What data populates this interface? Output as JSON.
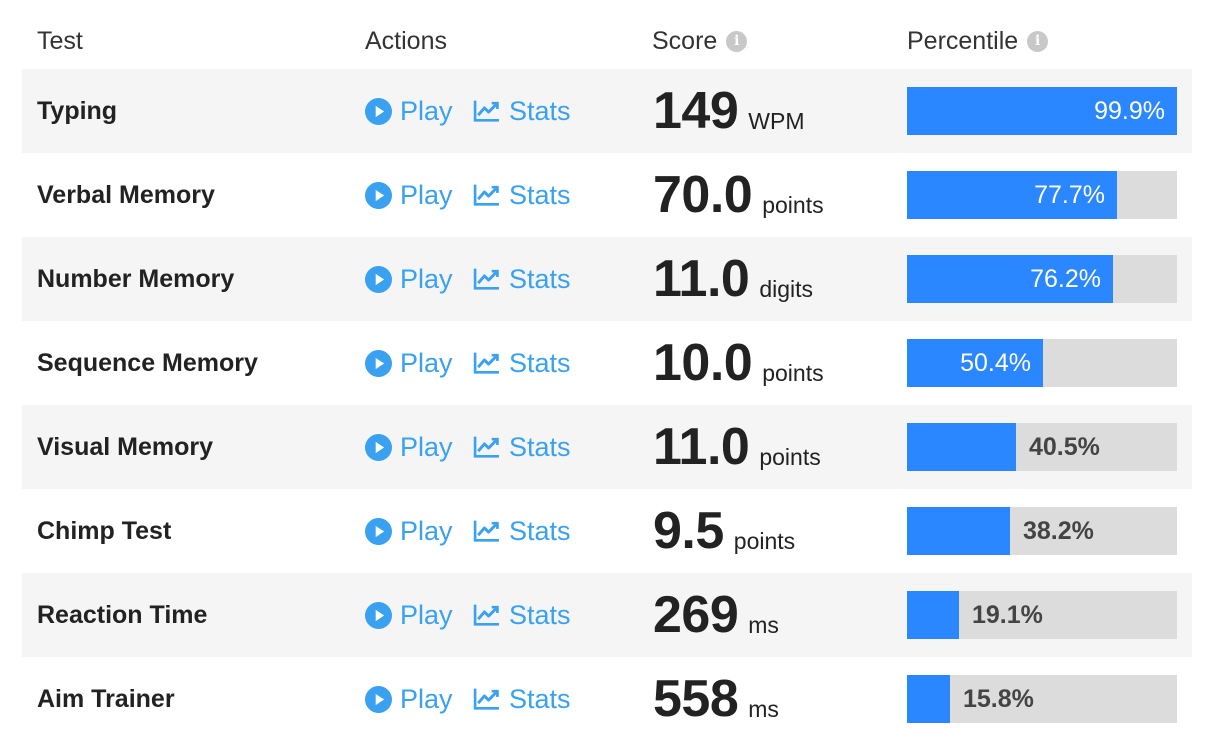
{
  "headers": {
    "test": "Test",
    "actions": "Actions",
    "score": "Score",
    "percentile": "Percentile",
    "info_icon": "i"
  },
  "actions": {
    "play_label": "Play",
    "stats_label": "Stats"
  },
  "colors": {
    "accent_blue": "#2b87ff",
    "link_blue": "#3aa0f0",
    "bar_track": "#dcdcdc",
    "row_alt": "#f5f5f5"
  },
  "icons": {
    "play": "play-circle-icon",
    "stats": "line-chart-icon",
    "info": "info-icon"
  },
  "rows": [
    {
      "name": "Typing",
      "score": "149",
      "unit": "WPM",
      "percentile_label": "99.9%",
      "percentile": 99.9
    },
    {
      "name": "Verbal Memory",
      "score": "70.0",
      "unit": "points",
      "percentile_label": "77.7%",
      "percentile": 77.7
    },
    {
      "name": "Number Memory",
      "score": "11.0",
      "unit": "digits",
      "percentile_label": "76.2%",
      "percentile": 76.2
    },
    {
      "name": "Sequence Memory",
      "score": "10.0",
      "unit": "points",
      "percentile_label": "50.4%",
      "percentile": 50.4
    },
    {
      "name": "Visual Memory",
      "score": "11.0",
      "unit": "points",
      "percentile_label": "40.5%",
      "percentile": 40.5
    },
    {
      "name": "Chimp Test",
      "score": "9.5",
      "unit": "points",
      "percentile_label": "38.2%",
      "percentile": 38.2
    },
    {
      "name": "Reaction Time",
      "score": "269",
      "unit": "ms",
      "percentile_label": "19.1%",
      "percentile": 19.1
    },
    {
      "name": "Aim Trainer",
      "score": "558",
      "unit": "ms",
      "percentile_label": "15.8%",
      "percentile": 15.8
    }
  ]
}
